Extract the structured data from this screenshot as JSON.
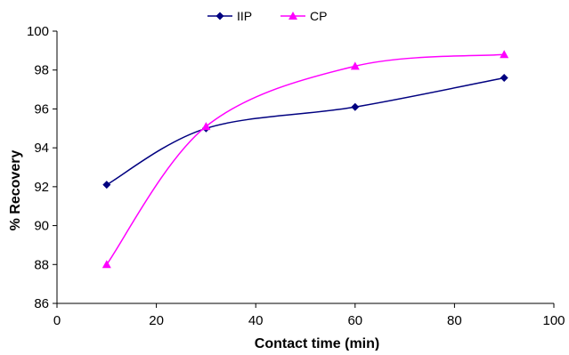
{
  "chart_data": {
    "type": "line",
    "title": "",
    "xlabel": "Contact time (min)",
    "ylabel": "% Recovery",
    "xlim": [
      0,
      100
    ],
    "ylim": [
      86,
      100
    ],
    "xticks": [
      0,
      20,
      40,
      60,
      80,
      100
    ],
    "yticks": [
      86,
      88,
      90,
      92,
      94,
      96,
      98,
      100
    ],
    "grid": false,
    "smooth": true,
    "legend": {
      "position": "top-center"
    },
    "series": [
      {
        "name": "IIP",
        "color": "#000080",
        "marker": "diamond",
        "x": [
          10,
          30,
          60,
          90
        ],
        "y": [
          92.1,
          95.0,
          96.1,
          97.6
        ]
      },
      {
        "name": "CP",
        "color": "#ff00ff",
        "marker": "triangle",
        "x": [
          10,
          30,
          60,
          90
        ],
        "y": [
          88.0,
          95.1,
          98.2,
          98.8
        ]
      }
    ]
  }
}
